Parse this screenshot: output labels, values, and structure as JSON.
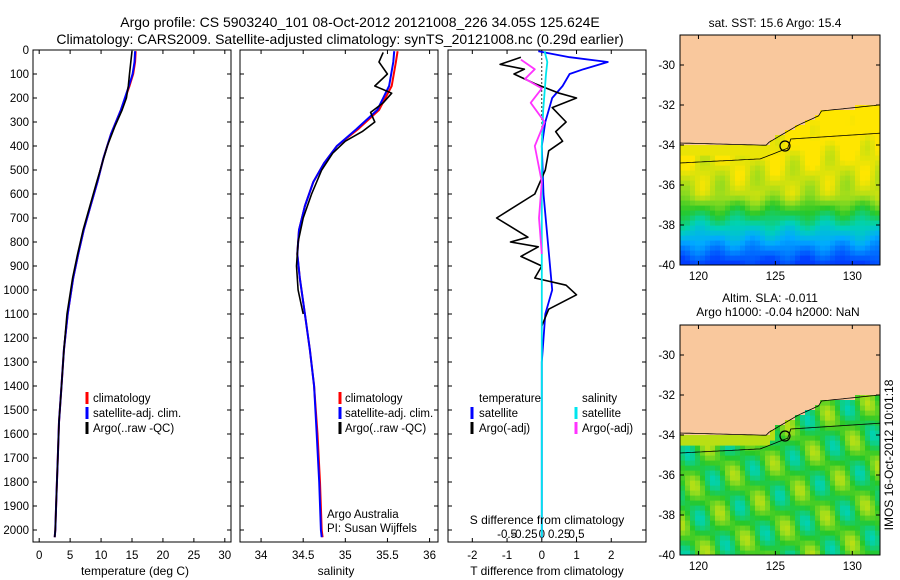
{
  "header": {
    "line1": "Argo profile: CS 5903240_101 08-Oct-2012 20121008_226 34.05S 125.624E",
    "line2": "Climatology: CARS2009. Satellite-adjusted climatology: synTS_20121008.nc (0.29d earlier)"
  },
  "colors": {
    "climatology": "#ff0000",
    "satellite": "#0000ff",
    "argo": "#000000",
    "sal_satellite": "#00e5ee",
    "sal_argo": "#ff33ff",
    "land": "#f9c89d"
  },
  "chart_data": [
    {
      "type": "line",
      "panel": "temperature",
      "xlabel": "temperature (deg C)",
      "xlim": [
        -1,
        31
      ],
      "xticks": [
        0,
        5,
        10,
        15,
        20,
        25,
        30
      ],
      "ylabel": "",
      "ylim": [
        2050,
        0
      ],
      "yticks": [
        0,
        100,
        200,
        300,
        400,
        500,
        600,
        700,
        800,
        900,
        1000,
        1100,
        1200,
        1300,
        1400,
        1500,
        1600,
        1700,
        1800,
        1900,
        2000
      ],
      "legend": [
        "climatology",
        "satellite-adj. clim.",
        "Argo(..raw -QC)"
      ],
      "series": [
        {
          "name": "climatology",
          "x": [
            15.6,
            15.5,
            15.2,
            14.6,
            13.2,
            11.6,
            10.4,
            9.4,
            8.3,
            7.2,
            6.3,
            5.5,
            4.6,
            4.0,
            3.6,
            3.2,
            3.0,
            2.8,
            2.6,
            2.5
          ],
          "y": [
            5,
            50,
            100,
            150,
            250,
            350,
            450,
            550,
            650,
            750,
            850,
            950,
            1100,
            1250,
            1400,
            1550,
            1700,
            1850,
            2000,
            2030
          ]
        },
        {
          "name": "satellite-adj. clim.",
          "x": [
            15.5,
            15.4,
            15.1,
            14.5,
            13.2,
            11.6,
            10.4,
            9.4,
            8.3,
            7.2,
            6.3,
            5.5,
            4.6,
            4.0,
            3.6,
            3.2,
            3.0,
            2.8,
            2.6,
            2.5
          ],
          "y": [
            5,
            50,
            100,
            150,
            250,
            350,
            450,
            550,
            650,
            750,
            850,
            950,
            1100,
            1250,
            1400,
            1550,
            1700,
            1850,
            2000,
            2030
          ]
        },
        {
          "name": "Argo(..raw -QC)",
          "x": [
            15.0,
            14.8,
            14.6,
            14.4,
            14.1,
            13.4,
            12.2,
            11.0,
            10.2,
            9.3,
            8.2,
            7.1,
            6.2,
            5.4,
            4.5,
            4.0,
            3.6,
            3.2,
            3.0,
            2.8,
            2.6,
            2.5
          ],
          "y": [
            5,
            50,
            100,
            150,
            200,
            250,
            320,
            400,
            470,
            550,
            650,
            750,
            850,
            950,
            1100,
            1250,
            1400,
            1550,
            1700,
            1850,
            2000,
            2030
          ]
        }
      ]
    },
    {
      "type": "line",
      "panel": "salinity",
      "xlabel": "salinity",
      "xlim": [
        33.75,
        36.1
      ],
      "xticks": [
        34,
        34.5,
        35,
        35.5,
        36
      ],
      "ylim": [
        2050,
        0
      ],
      "legend": [
        "climatology",
        "satellite-adj. clim.",
        "Argo(..raw -QC)"
      ],
      "annotation": [
        "Argo Australia",
        "PI: Susan Wijffels"
      ],
      "series": [
        {
          "name": "climatology",
          "x": [
            35.62,
            35.6,
            35.55,
            35.4,
            35.15,
            34.9,
            34.75,
            34.62,
            34.52,
            34.45,
            34.43,
            34.46,
            34.52,
            34.58,
            34.63,
            34.67,
            34.7,
            34.72,
            34.73
          ],
          "y": [
            5,
            50,
            150,
            250,
            330,
            400,
            470,
            550,
            650,
            750,
            850,
            950,
            1100,
            1250,
            1400,
            1600,
            1800,
            2000,
            2030
          ]
        },
        {
          "name": "satellite-adj. clim.",
          "x": [
            35.58,
            35.57,
            35.52,
            35.38,
            35.13,
            34.9,
            34.75,
            34.62,
            34.52,
            34.45,
            34.43,
            34.46,
            34.52,
            34.58,
            34.63,
            34.66,
            34.69,
            34.71,
            34.72
          ],
          "y": [
            5,
            50,
            150,
            250,
            330,
            400,
            470,
            550,
            650,
            750,
            850,
            950,
            1100,
            1250,
            1400,
            1600,
            1800,
            2000,
            2030
          ]
        },
        {
          "name": "Argo(..raw -QC)",
          "x": [
            35.45,
            35.4,
            35.5,
            35.35,
            35.55,
            35.45,
            35.3,
            35.35,
            35.2,
            35.0,
            34.85,
            34.72,
            34.6,
            34.5,
            34.44,
            34.42,
            34.44,
            34.5
          ],
          "y": [
            10,
            50,
            100,
            150,
            180,
            220,
            260,
            300,
            340,
            380,
            430,
            500,
            600,
            700,
            800,
            900,
            1000,
            1100
          ]
        }
      ]
    },
    {
      "type": "line",
      "panel": "difference",
      "xlabel": "T difference from climatology",
      "xlabel_top": "S difference from climatology",
      "xlim": [
        -2.7,
        3.0
      ],
      "xticks": [
        -2,
        -1,
        0,
        1,
        2
      ],
      "xticks_top": [
        "-0.5",
        "-0.25",
        "0",
        "0.25",
        "0.5"
      ],
      "ylim": [
        2050,
        0
      ],
      "legend_left": [
        "temperature",
        "satellite",
        "Argo(-adj)"
      ],
      "legend_right": [
        "salinity",
        "satellite",
        "Argo(-adj)"
      ],
      "series": [
        {
          "name": "T satellite",
          "x": [
            -0.1,
            0.8,
            1.9,
            1.2,
            0.8,
            0.6,
            0.3,
            0.1,
            0.0,
            0.05,
            0.3,
            0.1,
            0.0,
            0.0,
            0.0,
            0.0
          ],
          "y": [
            5,
            30,
            50,
            80,
            100,
            150,
            200,
            300,
            400,
            600,
            1000,
            1100,
            1300,
            1500,
            1800,
            2030
          ]
        },
        {
          "name": "T Argo(-adj)",
          "x": [
            -0.6,
            -1.2,
            -0.5,
            -0.8,
            -0.2,
            0.5,
            1.0,
            0.3,
            0.7,
            0.4,
            0.6,
            0.2,
            0.1,
            -0.2,
            -1.3,
            -0.4,
            -0.9,
            -0.1,
            -0.6,
            0.0,
            -0.2,
            0.7,
            1.0,
            0.2,
            0.0
          ],
          "y": [
            30,
            60,
            80,
            100,
            140,
            180,
            200,
            240,
            300,
            340,
            380,
            420,
            500,
            600,
            700,
            780,
            800,
            820,
            860,
            900,
            950,
            980,
            1020,
            1080,
            1150
          ]
        },
        {
          "name": "S satellite",
          "x": [
            0.02,
            0.04,
            0.03,
            0.01,
            0.0,
            0.0,
            0.0,
            0.0,
            0.0,
            0.0
          ],
          "y": [
            5,
            50,
            100,
            250,
            400,
            600,
            800,
            1000,
            1500,
            2030
          ]
        },
        {
          "name": "S Argo(-adj)",
          "x": [
            -0.15,
            -0.05,
            -0.12,
            0.0,
            -0.08,
            0.02,
            -0.05,
            0.0,
            -0.02,
            0.0
          ],
          "y": [
            40,
            80,
            120,
            160,
            220,
            300,
            400,
            550,
            700,
            850
          ]
        }
      ]
    },
    {
      "type": "heatmap",
      "panel": "sst_map",
      "title": "sat. SST: 15.6 Argo: 15.4",
      "xlim": [
        118.8,
        131.8
      ],
      "ylim": [
        -40,
        -28.5
      ],
      "xticks": [
        120,
        125,
        130
      ],
      "yticks": [
        -30,
        -32,
        -34,
        -36,
        -38,
        -40
      ],
      "float_position": [
        125.624,
        -34.05
      ]
    },
    {
      "type": "heatmap",
      "panel": "sla_map",
      "title": "Altim. SLA: -0.011",
      "subtitle": "Argo h1000: -0.04 h2000: NaN",
      "xlim": [
        118.8,
        131.8
      ],
      "ylim": [
        -40,
        -28.5
      ],
      "xticks": [
        120,
        125,
        130
      ],
      "yticks": [
        -30,
        -32,
        -34,
        -36,
        -38,
        -40
      ],
      "float_position": [
        125.624,
        -34.05
      ]
    }
  ],
  "footer": {
    "stamp": "IMOS 16-Oct-2012 10:01:18"
  }
}
